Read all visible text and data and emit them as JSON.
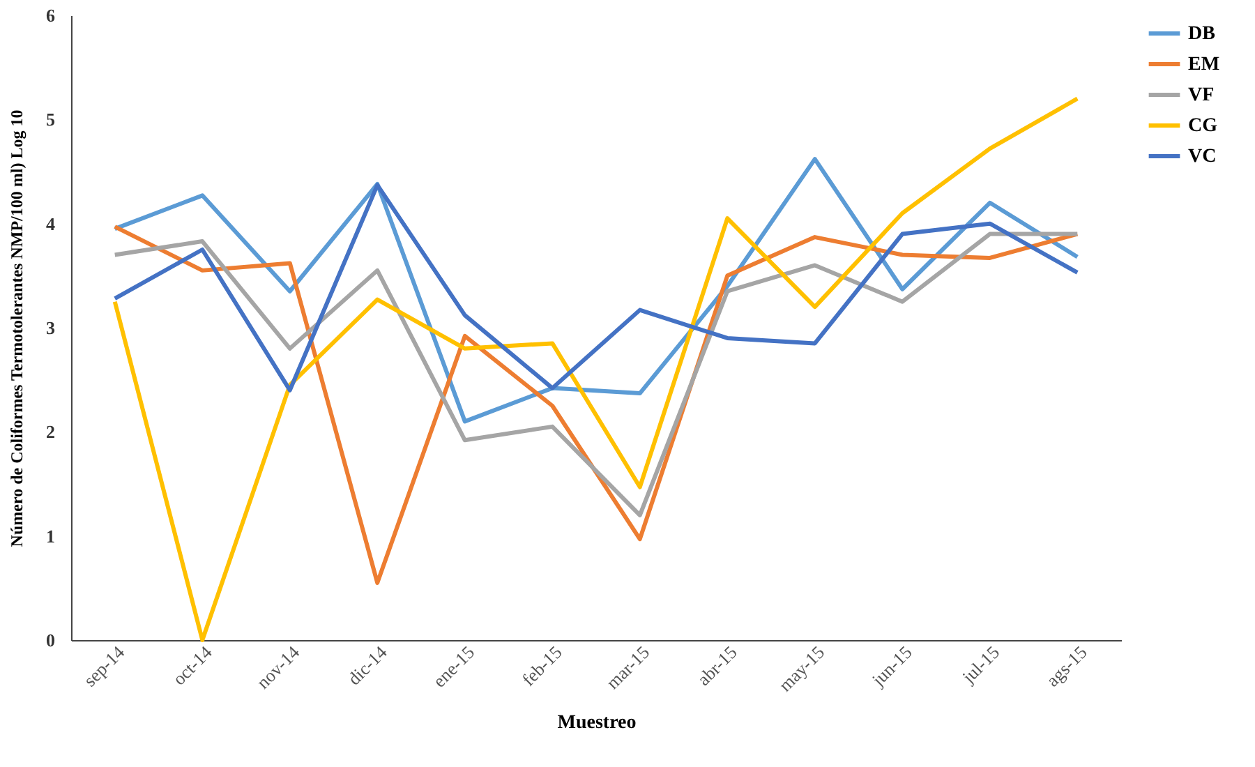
{
  "chart_data": {
    "type": "line",
    "categories": [
      "sep-14",
      "oct-14",
      "nov-14",
      "dic-14",
      "ene-15",
      "feb-15",
      "mar-15",
      "abr-15",
      "may-15",
      "jun-15",
      "jul-15",
      "ags-15"
    ],
    "series": [
      {
        "name": "DB",
        "color": "#5b9bd5",
        "values": [
          3.95,
          4.27,
          3.35,
          4.38,
          2.1,
          2.42,
          2.37,
          3.4,
          4.62,
          3.37,
          4.2,
          3.68
        ]
      },
      {
        "name": "EM",
        "color": "#ed7d31",
        "values": [
          3.97,
          3.55,
          3.62,
          0.55,
          2.92,
          2.25,
          0.97,
          3.5,
          3.87,
          3.7,
          3.67,
          3.9
        ]
      },
      {
        "name": "VF",
        "color": "#a5a5a5",
        "values": [
          3.7,
          3.83,
          2.8,
          3.55,
          1.92,
          2.05,
          1.2,
          3.35,
          3.6,
          3.25,
          3.9,
          3.9
        ]
      },
      {
        "name": "CG",
        "color": "#ffc000",
        "values": [
          3.25,
          0.0,
          2.45,
          3.27,
          2.8,
          2.85,
          1.47,
          4.05,
          3.2,
          4.1,
          4.72,
          5.2
        ]
      },
      {
        "name": "VC",
        "color": "#4472c4",
        "values": [
          3.28,
          3.75,
          2.4,
          4.37,
          3.12,
          2.42,
          3.17,
          2.9,
          2.85,
          3.9,
          4.0,
          3.53
        ]
      }
    ],
    "xlabel": "Muestreo",
    "ylabel": "Número de Coliformes Termotolerantes NMP/100 ml) Log 10",
    "ylim": [
      0,
      6
    ],
    "yticks": [
      0,
      1,
      2,
      3,
      4,
      5,
      6
    ],
    "grid": false,
    "legend": "right",
    "marker": "none",
    "line_style": "solid"
  }
}
